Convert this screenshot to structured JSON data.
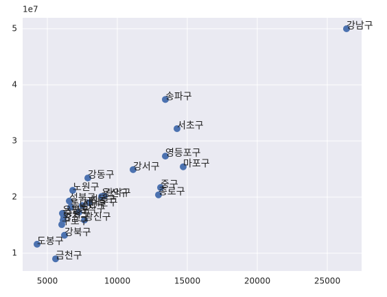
{
  "chart_data": {
    "type": "scatter",
    "y_offset_label": "1e7",
    "labels": [
      "강남구",
      "송파구",
      "서초구",
      "영등포구",
      "마포구",
      "강서구",
      "중구",
      "종로구",
      "강동구",
      "노원구",
      "관악구",
      "도봉구",
      "금천구",
      "강북구",
      "성북구",
      "은평구",
      "양천구",
      "구로구",
      "중랑구",
      "동대문구",
      "동작구",
      "서대문구",
      "광진구",
      "성동구",
      "용산구"
    ],
    "x": [
      26373,
      13431,
      14265,
      13431,
      14706,
      11127,
      13088,
      12941,
      7892,
      6814,
      9069,
      4265,
      5588,
      6225,
      6569,
      6078,
      6127,
      6029,
      6176,
      6667,
      7255,
      7500,
      7647,
      7990,
      8873
    ],
    "values": [
      5.0,
      3.74,
      3.22,
      2.73,
      2.54,
      2.49,
      2.17,
      2.04,
      2.34,
      2.12,
      2.02,
      1.16,
      0.9,
      1.32,
      1.93,
      1.71,
      1.59,
      1.51,
      1.65,
      1.82,
      1.73,
      1.85,
      1.59,
      1.9,
      2.01
    ],
    "color": "#4c72b0",
    "xlim": [
      3235,
      27451
    ],
    "ylim": [
      0.683,
      5.195
    ],
    "xticks": [
      5000,
      10000,
      15000,
      20000,
      25000
    ],
    "yticks": [
      1,
      2,
      3,
      4,
      5
    ],
    "grid": true
  }
}
